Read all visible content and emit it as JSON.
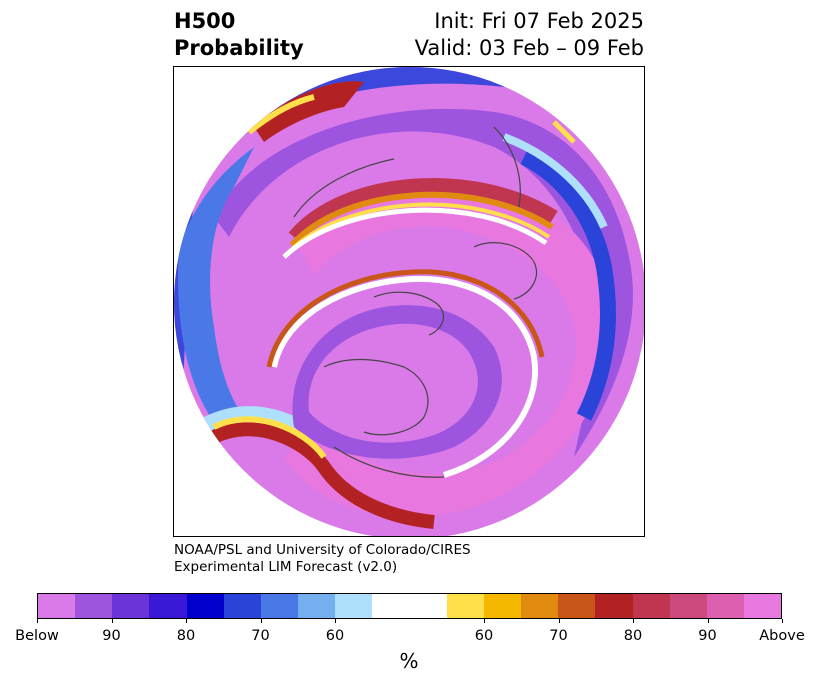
{
  "header": {
    "title_line1": "H500",
    "title_line2": "Probability",
    "init": "Init: Fri 07 Feb 2025",
    "valid": "Valid: 03 Feb – 09 Feb"
  },
  "credit": {
    "line1": "NOAA/PSL and University of Colorado/CIRES",
    "line2": "Experimental LIM Forecast (v2.0)"
  },
  "colorbar": {
    "colors": [
      "#d97ae8",
      "#9d55e0",
      "#6b34d9",
      "#3b18d6",
      "#0000cc",
      "#2a43d9",
      "#4a78e6",
      "#74b0f0",
      "#aee0fb",
      "#ffffff",
      "#ffffff",
      "#ffe04a",
      "#f5b800",
      "#e08a10",
      "#c85618",
      "#b22222",
      "#c03550",
      "#cc4a7e",
      "#dd5fb0",
      "#e878e0"
    ],
    "ticks": [
      "Below",
      "90",
      "80",
      "70",
      "60",
      "60",
      "70",
      "80",
      "90",
      "Above"
    ],
    "unit": "%"
  }
}
